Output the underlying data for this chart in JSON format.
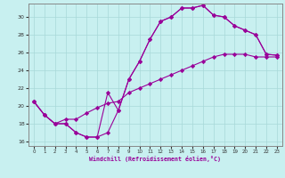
{
  "xlabel": "Windchill (Refroidissement éolien,°C)",
  "bg_color": "#c8f0f0",
  "grid_color": "#a8d8d8",
  "line_color": "#990099",
  "xlim": [
    -0.5,
    23.5
  ],
  "ylim": [
    15.5,
    31.5
  ],
  "xticks": [
    0,
    1,
    2,
    3,
    4,
    5,
    6,
    7,
    8,
    9,
    10,
    11,
    12,
    13,
    14,
    15,
    16,
    17,
    18,
    19,
    20,
    21,
    22,
    23
  ],
  "yticks": [
    16,
    18,
    20,
    22,
    24,
    26,
    28,
    30
  ],
  "line1_x": [
    0,
    1,
    2,
    3,
    4,
    5,
    6,
    7,
    8,
    9,
    10,
    11,
    12,
    13,
    14,
    15,
    16,
    17,
    18,
    19,
    20,
    21,
    22,
    23
  ],
  "line1_y": [
    20.5,
    19.0,
    18.0,
    18.0,
    17.0,
    16.5,
    16.5,
    17.0,
    19.5,
    23.0,
    25.0,
    27.5,
    29.5,
    30.0,
    31.0,
    31.0,
    31.3,
    30.2,
    30.0,
    29.0,
    28.5,
    28.0,
    25.8,
    25.7
  ],
  "line2_x": [
    0,
    1,
    2,
    3,
    4,
    5,
    6,
    7,
    8,
    9,
    10,
    11,
    12,
    13,
    14,
    15,
    16,
    17,
    18,
    19,
    20,
    21,
    22,
    23
  ],
  "line2_y": [
    20.5,
    19.0,
    18.0,
    18.0,
    17.0,
    16.5,
    16.5,
    21.5,
    19.5,
    23.0,
    25.0,
    27.5,
    29.5,
    30.0,
    31.0,
    31.0,
    31.3,
    30.2,
    30.0,
    29.0,
    28.5,
    28.0,
    25.8,
    25.7
  ],
  "line3_x": [
    0,
    1,
    2,
    3,
    4,
    5,
    6,
    7,
    8,
    9,
    10,
    11,
    12,
    13,
    14,
    15,
    16,
    17,
    18,
    19,
    20,
    21,
    22,
    23
  ],
  "line3_y": [
    20.5,
    19.0,
    18.0,
    18.5,
    18.5,
    19.2,
    19.8,
    20.3,
    20.5,
    21.5,
    22.0,
    22.5,
    23.0,
    23.5,
    24.0,
    24.5,
    25.0,
    25.5,
    25.8,
    25.8,
    25.8,
    25.5,
    25.5,
    25.5
  ]
}
